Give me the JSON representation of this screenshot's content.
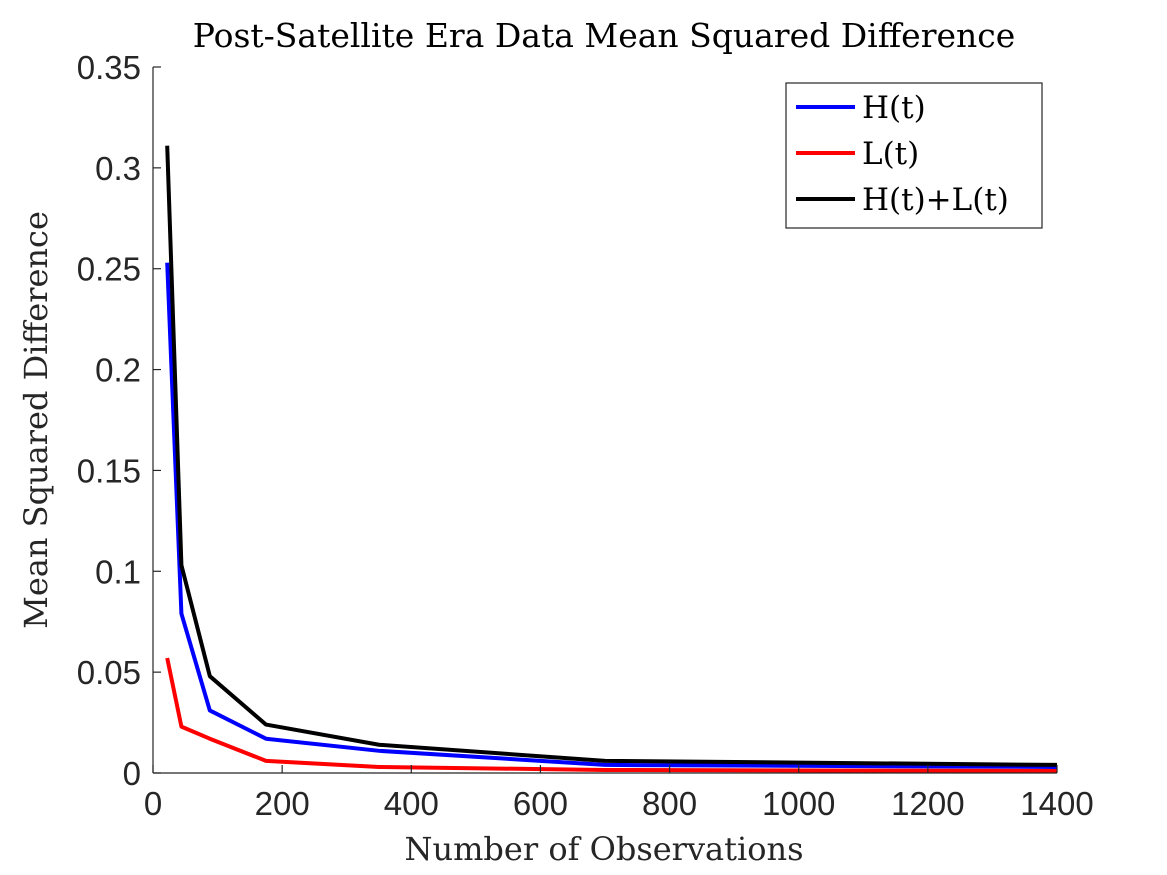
{
  "chart_data": {
    "type": "line",
    "title": "Post-Satellite Era Data Mean Squared Difference",
    "xlabel": "Number of Observations",
    "ylabel": "Mean Squared Difference",
    "xlim": [
      0,
      1400
    ],
    "ylim": [
      0,
      0.35
    ],
    "xticks": [
      0,
      200,
      400,
      600,
      800,
      1000,
      1200,
      1400
    ],
    "yticks": [
      0,
      0.05,
      0.1,
      0.15,
      0.2,
      0.25,
      0.3,
      0.35
    ],
    "xtick_labels": [
      "0",
      "200",
      "400",
      "600",
      "800",
      "1000",
      "1200",
      "1400"
    ],
    "ytick_labels": [
      "0",
      "0.05",
      "0.1",
      "0.15",
      "0.2",
      "0.25",
      "0.3",
      "0.35"
    ],
    "grid": false,
    "legend_position": "top-right",
    "x": [
      22,
      44,
      88,
      175,
      350,
      700,
      1400
    ],
    "series": [
      {
        "name": "H(t)",
        "color": "#0000ff",
        "values": [
          0.253,
          0.079,
          0.031,
          0.017,
          0.011,
          0.004,
          0.003
        ]
      },
      {
        "name": "L(t)",
        "color": "#ff0000",
        "values": [
          0.057,
          0.023,
          0.017,
          0.006,
          0.003,
          0.0015,
          0.001
        ]
      },
      {
        "name": "H(t)+L(t)",
        "color": "#000000",
        "values": [
          0.311,
          0.103,
          0.048,
          0.024,
          0.014,
          0.006,
          0.004
        ]
      }
    ]
  }
}
